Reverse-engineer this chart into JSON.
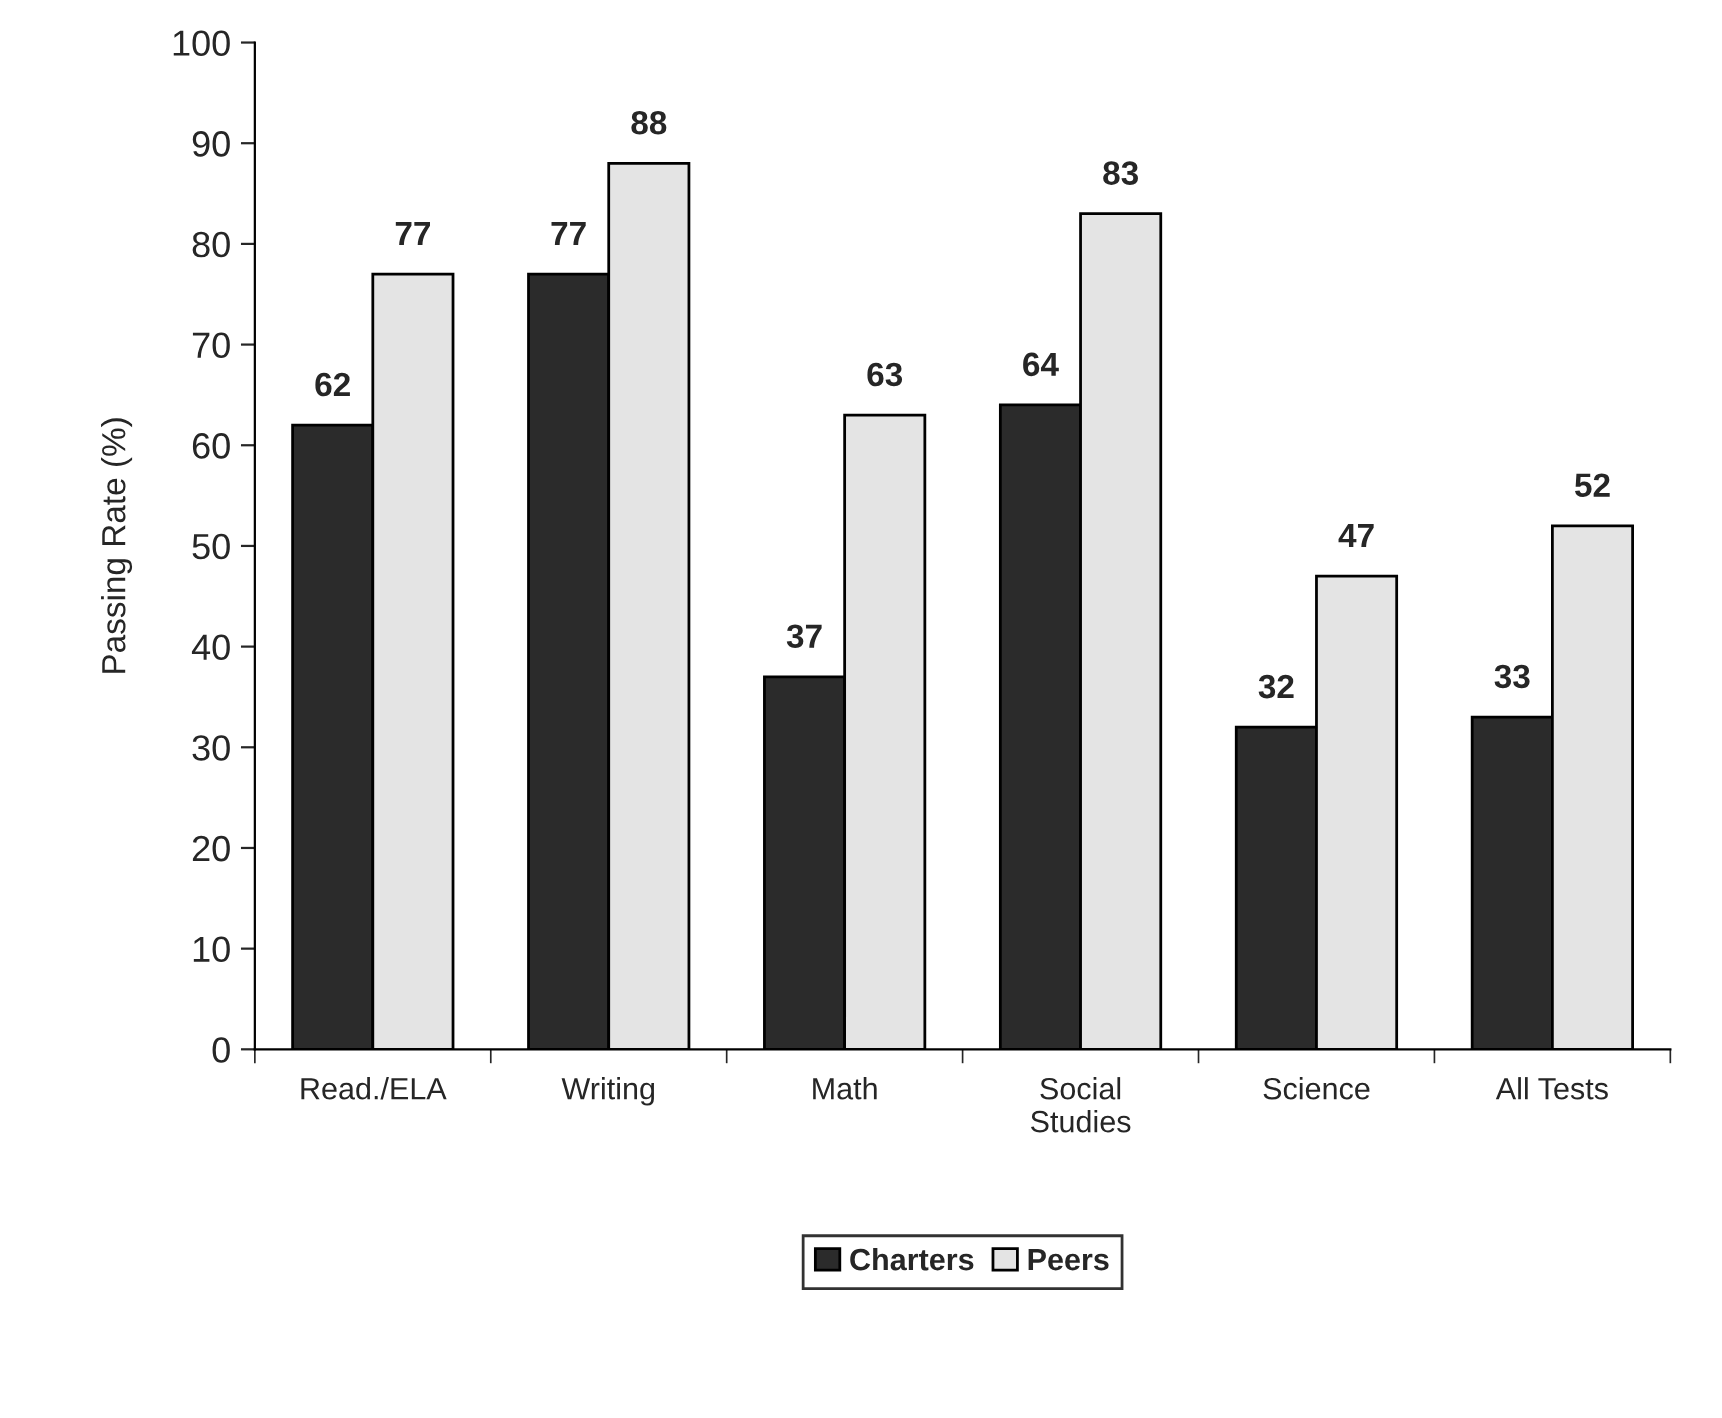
{
  "chart_data": {
    "type": "bar",
    "ylabel": "Passing Rate (%)",
    "categories": [
      "Read./ELA",
      "Writing",
      "Math",
      "Social\nStudies",
      "Science",
      "All Tests"
    ],
    "series": [
      {
        "name": "Charters",
        "color": "#2b2b2b",
        "values": [
          62,
          77,
          37,
          64,
          32,
          33
        ]
      },
      {
        "name": "Peers",
        "color": "#e4e4e4",
        "values": [
          77,
          88,
          63,
          83,
          47,
          52
        ]
      }
    ],
    "ylim": [
      0,
      100
    ],
    "yticks": [
      0,
      10,
      20,
      30,
      40,
      50,
      60,
      70,
      80,
      90,
      100
    ],
    "data_labels": true,
    "grid": false,
    "legend": "bottom"
  }
}
